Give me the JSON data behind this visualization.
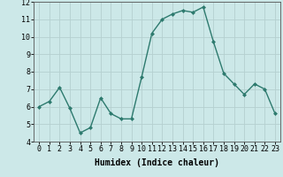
{
  "x": [
    0,
    1,
    2,
    3,
    4,
    5,
    6,
    7,
    8,
    9,
    10,
    11,
    12,
    13,
    14,
    15,
    16,
    17,
    18,
    19,
    20,
    21,
    22,
    23
  ],
  "y": [
    6.0,
    6.3,
    7.1,
    5.9,
    4.5,
    4.8,
    6.5,
    5.6,
    5.3,
    5.3,
    7.7,
    10.2,
    11.0,
    11.3,
    11.5,
    11.4,
    11.7,
    9.7,
    7.9,
    7.3,
    6.7,
    7.3,
    7.0,
    5.6
  ],
  "xlabel": "Humidex (Indice chaleur)",
  "ylim": [
    4,
    12
  ],
  "xlim": [
    -0.5,
    23.5
  ],
  "yticks": [
    4,
    5,
    6,
    7,
    8,
    9,
    10,
    11,
    12
  ],
  "xticks": [
    0,
    1,
    2,
    3,
    4,
    5,
    6,
    7,
    8,
    9,
    10,
    11,
    12,
    13,
    14,
    15,
    16,
    17,
    18,
    19,
    20,
    21,
    22,
    23
  ],
  "xtick_labels": [
    "0",
    "1",
    "2",
    "3",
    "4",
    "5",
    "6",
    "7",
    "8",
    "9",
    "10",
    "11",
    "12",
    "13",
    "14",
    "15",
    "16",
    "17",
    "18",
    "19",
    "20",
    "21",
    "22",
    "23"
  ],
  "line_color": "#2d7a6e",
  "marker": "D",
  "marker_size": 2.0,
  "bg_color": "#cce8e8",
  "grid_color": "#b5d0d0",
  "xlabel_fontsize": 7,
  "tick_fontsize": 6,
  "line_width": 1.0
}
